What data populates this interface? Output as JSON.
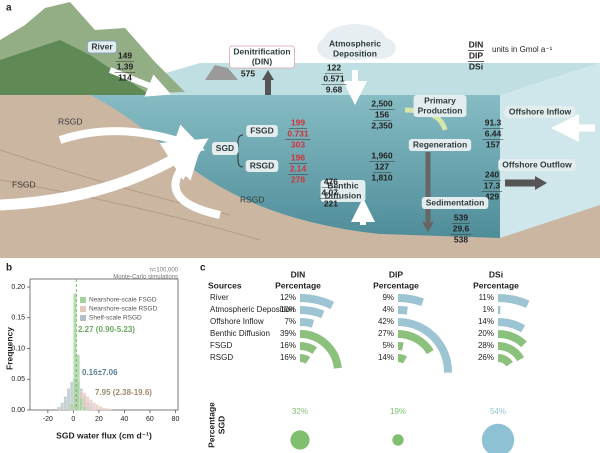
{
  "panel_a": {
    "label": "a",
    "legend": {
      "lines": [
        "DIN",
        "DIP",
        "DSi"
      ],
      "units": "units in Gmol a⁻¹"
    },
    "value_color": "#d0343a",
    "sgd_label": "SGD",
    "fluxes": [
      {
        "label": [
          "River"
        ],
        "values": [
          "149",
          "1.39",
          "114"
        ]
      },
      {
        "label": [
          "Denitrification",
          "(DIN)"
        ],
        "values": [
          "575"
        ]
      },
      {
        "label": [
          "Atmospheric",
          "Deposition"
        ],
        "values": [
          "122",
          "0.571",
          "9.68"
        ]
      },
      {
        "label": [
          "Primary",
          "Production"
        ],
        "values": [
          "2,500",
          "156",
          "2,350"
        ]
      },
      {
        "label": [
          "Offshore Inflow"
        ],
        "values": [
          "91.3",
          "6.44",
          "157"
        ]
      },
      {
        "label": [
          "Regeneration"
        ],
        "values": [
          "1,960",
          "127",
          "1,810"
        ]
      },
      {
        "label": [
          "FSGD"
        ],
        "values": [
          "199",
          "0.731",
          "303"
        ],
        "sgd": true
      },
      {
        "label": [
          "RSGD"
        ],
        "values": [
          "196",
          "2.14",
          "278"
        ],
        "sgd": true
      },
      {
        "label": [
          "Offshore Outflow"
        ],
        "values": [
          "240",
          "17.3",
          "429"
        ]
      },
      {
        "label": [
          "Benthic",
          "Diffusion"
        ],
        "values": [
          "476",
          "4.07",
          "221"
        ]
      },
      {
        "label": [
          "Sedimentation"
        ],
        "values": [
          "539",
          "29.6",
          "538"
        ]
      }
    ],
    "landscape_labels": [
      "RSGD",
      "FSGD",
      "RSGD"
    ]
  },
  "chart_data": [
    {
      "type": "histogram",
      "label": "b",
      "note": [
        "n=100,000",
        "Monte-Carlo simulations"
      ],
      "xlabel": "SGD water flux (cm d⁻¹)",
      "ylabel": "Frequency",
      "bins": [
        -12.5,
        -10,
        -7.5,
        -5,
        -2.5,
        0,
        2.5,
        5,
        7.5,
        10,
        12.5,
        15,
        17.5,
        20,
        22.5,
        25,
        27.5,
        30
      ],
      "series": [
        {
          "name": "Nearshore-scale FSGD",
          "color": "#9fd39a",
          "values": [
            0,
            0,
            0,
            0,
            0.01,
            0.19,
            0.09,
            0.02,
            0.005,
            0,
            0,
            0,
            0,
            0,
            0,
            0,
            0
          ]
        },
        {
          "name": "Nearshore-scale RSGD",
          "color": "#e6c6c0",
          "values": [
            0,
            0,
            0,
            0,
            0,
            0.01,
            0.025,
            0.03,
            0.028,
            0.022,
            0.017,
            0.012,
            0.009,
            0.006,
            0.004,
            0.003,
            0.002
          ]
        },
        {
          "name": "Shelf-scale RSGD",
          "color": "#b3c1c6",
          "values": [
            0.005,
            0.012,
            0.022,
            0.035,
            0.046,
            0.05,
            0.045,
            0.035,
            0.022,
            0.012,
            0.005,
            0.002,
            0,
            0,
            0,
            0,
            0
          ]
        }
      ],
      "vline": 2.27,
      "vline_color": "#6aa85f",
      "annotations": [
        {
          "text": "2.27 (0.90-5.23)",
          "color": "#6aa85f"
        },
        {
          "text": "0.16±7.06",
          "color": "#5b7f95"
        },
        {
          "text": "7.95 (2.38-19.6)",
          "color": "#a08a6a"
        }
      ],
      "legend": "upper right",
      "xlim": [
        -34,
        82
      ],
      "xticks": [
        -20,
        0,
        20,
        40,
        60,
        80
      ],
      "ylim": [
        0,
        0.2
      ],
      "yticks": [
        {
          "value": 0,
          "label": "0.00"
        },
        {
          "value": 0.05,
          "label": "0.05"
        },
        {
          "value": 0.1,
          "label": "0.10"
        },
        {
          "value": 0.15,
          "label": "0.15"
        },
        {
          "value": 0.2,
          "label": "0.20"
        }
      ]
    },
    {
      "type": "arc",
      "label": "c",
      "category_header": "Sources",
      "categories": [
        "River",
        "Atmospheric Deposition",
        "Offshore Inflow",
        "Benthic Diffusion",
        "FSGD",
        "RSGD"
      ],
      "category_colors": [
        "#9dc4d3",
        "#9dc4d3",
        "#9dc4d3",
        "#8cc07d",
        "#8cc07d",
        "#8cc07d"
      ],
      "value_header": "Percentage",
      "series": [
        {
          "name": "DIN",
          "values": [
            12,
            10,
            7,
            39,
            16,
            16
          ],
          "value_labels": [
            "12%",
            "10%",
            "7%",
            "39%",
            "16%",
            "16%"
          ]
        },
        {
          "name": "DIP",
          "values": [
            9,
            4,
            42,
            27,
            5,
            14
          ],
          "value_labels": [
            "9%",
            "4%",
            "42%",
            "27%",
            "5%",
            "14%"
          ]
        },
        {
          "name": "DSi",
          "values": [
            11,
            1,
            14,
            20,
            28,
            26
          ],
          "value_labels": [
            "11%",
            "1%",
            "14%",
            "20%",
            "28%",
            "26%"
          ]
        }
      ],
      "sgd": {
        "label": [
          "Percentage",
          "SGD"
        ],
        "values": [
          32,
          19,
          54
        ],
        "value_labels": [
          "32%",
          "19%",
          "54%"
        ],
        "colors": [
          "#7fbf6e",
          "#7fbf6e",
          "#8fc1d4"
        ]
      }
    }
  ]
}
